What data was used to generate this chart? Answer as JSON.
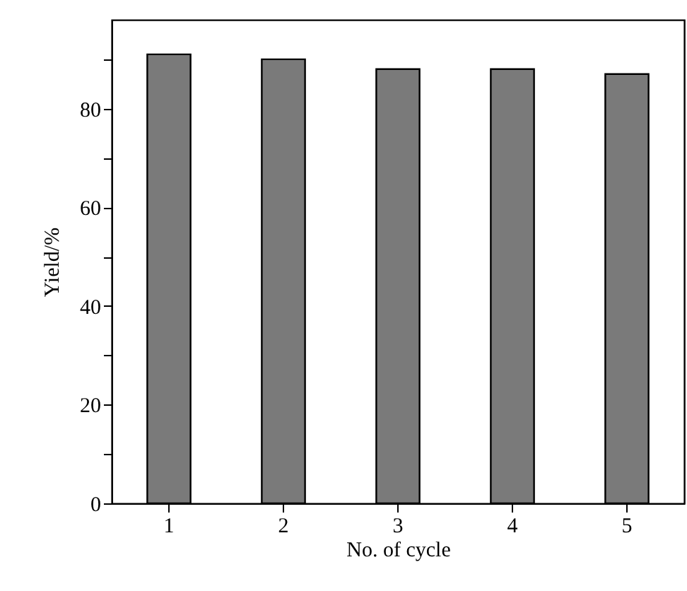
{
  "chart_data": {
    "type": "bar",
    "xlabel": "No. of cycle",
    "ylabel": "Yield/%",
    "categories": [
      "1",
      "2",
      "3",
      "4",
      "5"
    ],
    "values": [
      91,
      90,
      88,
      88,
      87
    ],
    "color": "#7a7a7a",
    "ylim": [
      0,
      98
    ],
    "yticks": [
      0,
      {
        "value": 10,
        "label": null
      },
      20,
      {
        "value": 30,
        "label": null
      },
      40,
      {
        "value": 50,
        "label": null
      },
      60,
      {
        "value": 70,
        "label": null
      },
      80,
      {
        "value": 90,
        "label": null
      }
    ],
    "grid": false
  }
}
